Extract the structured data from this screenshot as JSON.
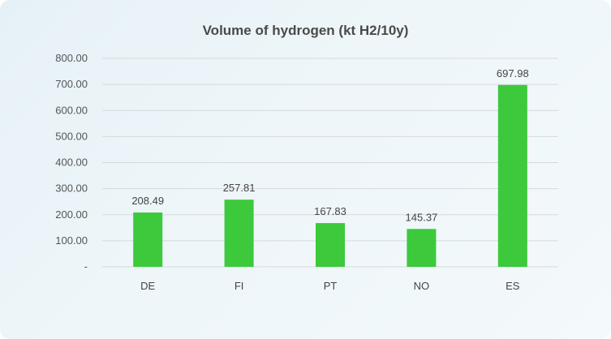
{
  "chart_data": {
    "type": "bar",
    "title": "Volume of hydrogen (kt H2/10y)",
    "categories": [
      "DE",
      "FI",
      "PT",
      "NO",
      "ES"
    ],
    "values": [
      208.49,
      257.81,
      167.83,
      145.37,
      697.98
    ],
    "value_labels": [
      "208.49",
      "257.81",
      "167.83",
      "145.37",
      "697.98"
    ],
    "ylim": [
      0,
      800
    ],
    "y_ticks": [
      0,
      100,
      200,
      300,
      400,
      500,
      600,
      700,
      800
    ],
    "y_tick_labels": [
      "-",
      "100.00",
      "200.00",
      "300.00",
      "400.00",
      "500.00",
      "600.00",
      "700.00",
      "800.00"
    ],
    "xlabel": "",
    "ylabel": "",
    "grid": true,
    "legend": "none",
    "bar_color": "#3cc93c",
    "grid_color": "#d4d9dc"
  }
}
